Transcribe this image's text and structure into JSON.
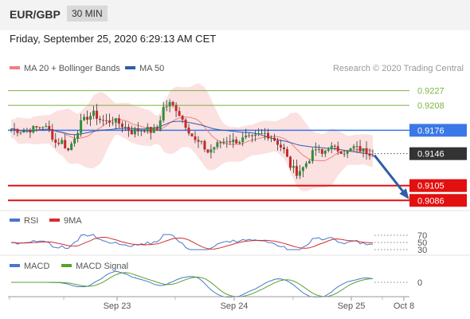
{
  "header": {
    "pair": "EUR/GBP",
    "timeframe": "30 MIN"
  },
  "datetime": "Friday, September 25, 2020 6:29:13 AM CET",
  "legend": {
    "ma20": "MA 20 + Bollinger Bands",
    "ma50": "MA 50",
    "rsi": "RSI",
    "rsi_ma": "9MA",
    "macd": "MACD",
    "macd_signal": "MACD Signal"
  },
  "credit": "Research © 2020 Trading Central",
  "colors": {
    "ma20": "#f08080",
    "ma50": "#2d5ea8",
    "bands": "#fbdada",
    "up": "#2f8f3a",
    "down": "#c62828",
    "resistance": "#7cb342",
    "pivot": "#3b78e7",
    "support": "#e31010",
    "rsi": "#4a76c9",
    "rsi_ma": "#d32f2f",
    "macd": "#4a76c9",
    "macd_signal": "#5aa02c",
    "arrow": "#2d5ea8"
  },
  "chart_data": [
    {
      "type": "candlestick",
      "ylim": [
        0.9075,
        0.9245
      ],
      "x_ticks": [
        "Sep 23",
        "Sep 24",
        "Sep 25",
        "Oct 8"
      ],
      "levels": [
        {
          "label": "0.9227",
          "value": 0.9227,
          "kind": "resistance"
        },
        {
          "label": "0.9208",
          "value": 0.9208,
          "kind": "resistance"
        },
        {
          "label": "0.9176",
          "value": 0.9176,
          "kind": "pivot"
        },
        {
          "label": "0.9146",
          "value": 0.9146,
          "kind": "current"
        },
        {
          "label": "0.9105",
          "value": 0.9105,
          "kind": "support"
        },
        {
          "label": "0.9086",
          "value": 0.9086,
          "kind": "support"
        }
      ],
      "close_path": [
        0.9178,
        0.9176,
        0.9175,
        0.9177,
        0.9179,
        0.9182,
        0.9176,
        0.916,
        0.9162,
        0.915,
        0.9168,
        0.9185,
        0.9193,
        0.9197,
        0.919,
        0.9187,
        0.9189,
        0.9185,
        0.918,
        0.9174,
        0.9176,
        0.9178,
        0.9175,
        0.9177,
        0.9205,
        0.921,
        0.9204,
        0.919,
        0.9176,
        0.9162,
        0.9158,
        0.9148,
        0.9155,
        0.916,
        0.9164,
        0.9162,
        0.9163,
        0.9166,
        0.9165,
        0.917,
        0.9172,
        0.9168,
        0.916,
        0.915,
        0.913,
        0.9122,
        0.9128,
        0.914,
        0.9152,
        0.9145,
        0.9155,
        0.9152,
        0.915,
        0.9148,
        0.9154,
        0.9151,
        0.9149,
        0.9146
      ],
      "forecast": [
        0.9146,
        0.9086
      ]
    },
    {
      "type": "line",
      "title": "RSI",
      "levels": [
        70,
        50,
        30
      ]
    },
    {
      "type": "line",
      "title": "MACD",
      "levels": [
        0
      ]
    }
  ]
}
